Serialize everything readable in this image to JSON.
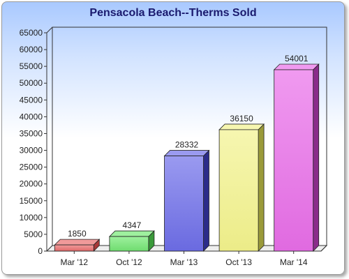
{
  "chart_data": {
    "type": "bar",
    "title": "Pensacola Beach--Therms Sold",
    "xlabel": "",
    "ylabel": "",
    "categories": [
      "Mar '12",
      "Oct '12",
      "Mar '13",
      "Oct '13",
      "Mar '14"
    ],
    "values": [
      1850,
      4347,
      28332,
      36150,
      54001
    ],
    "data_labels": [
      "1850",
      "4347",
      "28332",
      "36150",
      "54001"
    ],
    "ylim": [
      0,
      65000
    ],
    "yticks": [
      0,
      5000,
      10000,
      15000,
      20000,
      25000,
      30000,
      35000,
      40000,
      45000,
      50000,
      55000,
      60000,
      65000
    ],
    "grid": false,
    "style": "3d-bar",
    "colors": [
      {
        "front": "#e06a6a",
        "side": "#a83838",
        "top": "#f09a9a"
      },
      {
        "front": "#6fdc6f",
        "side": "#3a9a3a",
        "top": "#9ef09e"
      },
      {
        "front": "#6a6ae0",
        "side": "#2c2c8a",
        "top": "#9a9af0"
      },
      {
        "front": "#ecec88",
        "side": "#9a9a3a",
        "top": "#f6f6b0"
      },
      {
        "front": "#e06ae0",
        "side": "#8a2c8a",
        "top": "#f09af0"
      }
    ]
  }
}
